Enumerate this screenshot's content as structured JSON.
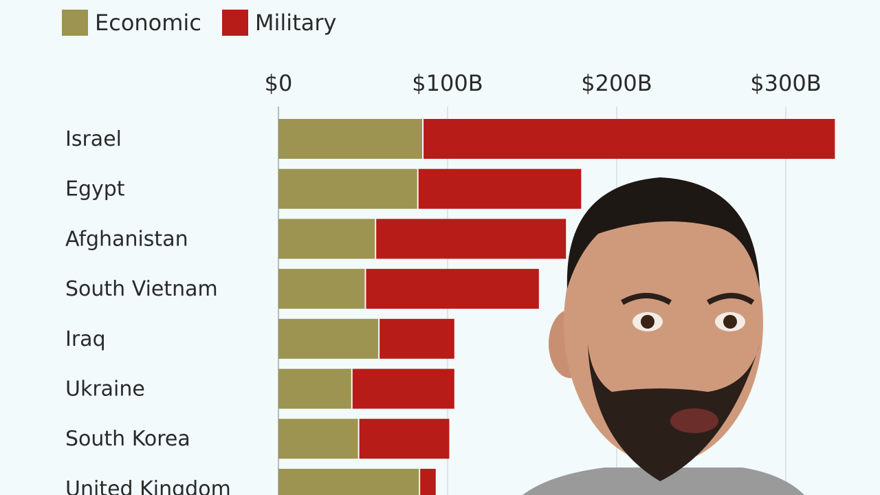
{
  "colors": {
    "economic": "#9c9450",
    "military": "#b81c18",
    "grid": "#d6dcdc",
    "background": "#f2fafb"
  },
  "chart_data": {
    "type": "bar",
    "orientation": "horizontal",
    "stacked": true,
    "categories": [
      "Israel",
      "Egypt",
      "Afghanistan",
      "South Vietnam",
      "Iraq",
      "Ukraine",
      "South Korea",
      "United Kingdom"
    ],
    "series": [
      {
        "name": "Economic",
        "values": [
          85,
          82,
          57,
          51,
          59,
          43,
          47,
          83
        ]
      },
      {
        "name": "Military",
        "values": [
          244,
          97,
          113,
          103,
          45,
          61,
          54,
          10
        ]
      }
    ],
    "xticks": [
      "$0",
      "$100B",
      "$200B",
      "$300B"
    ],
    "xtick_values": [
      0,
      100,
      200,
      300
    ],
    "xlim": [
      0,
      330
    ],
    "unit": "billions USD",
    "grid": true,
    "legend": "top-left",
    "axis_position": "top"
  },
  "overlay": {
    "icon": "presenter-person"
  }
}
